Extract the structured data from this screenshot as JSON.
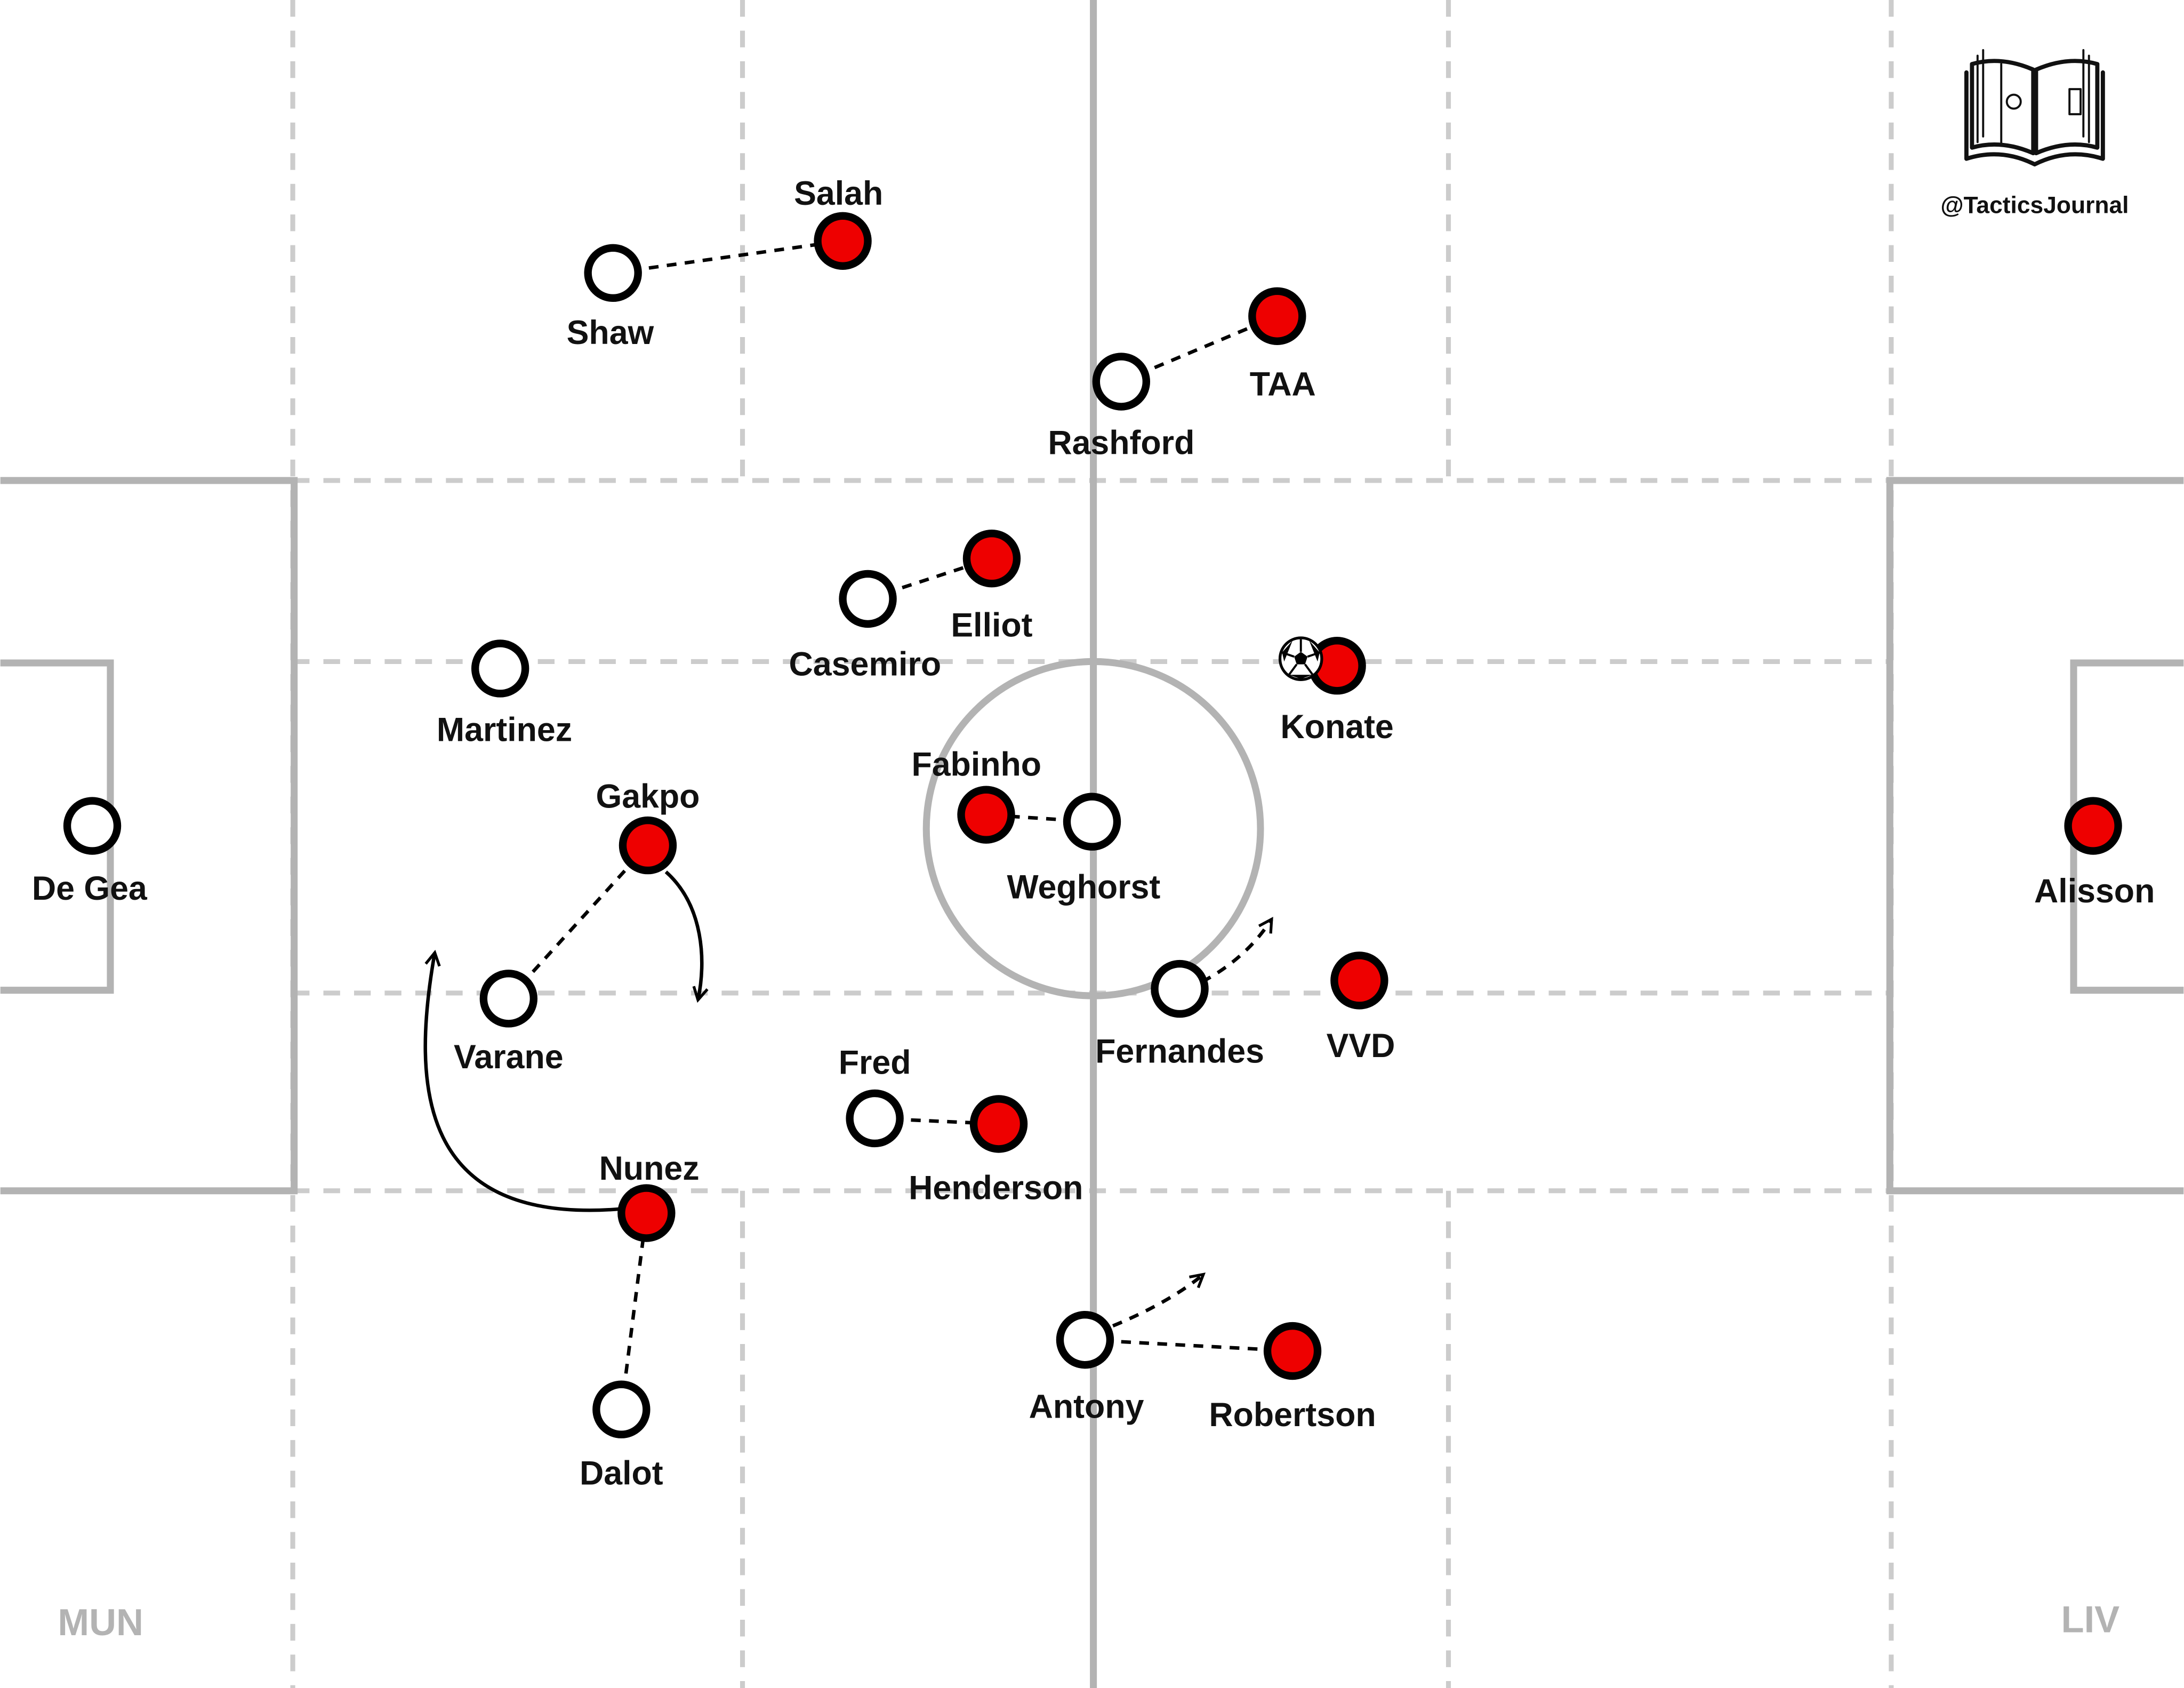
{
  "credit": {
    "handle": "@TacticsJournal",
    "logo_icon": "tactics-book-icon"
  },
  "teams": {
    "left": {
      "code": "MUN",
      "marker_fill": "#ffffff",
      "marker_stroke": "#000000"
    },
    "right": {
      "code": "LIV",
      "marker_fill": "#ee0000",
      "marker_stroke": "#000000"
    }
  },
  "colors": {
    "pitch_lines": "#b3b3b3",
    "grid_lines": "#cccccc",
    "team_code": "#b3b3b3",
    "label": "#111111"
  },
  "players": {
    "mun": [
      {
        "id": "de-gea",
        "name": "De Gea"
      },
      {
        "id": "shaw",
        "name": "Shaw"
      },
      {
        "id": "rashford",
        "name": "Rashford"
      },
      {
        "id": "casemiro",
        "name": "Casemiro"
      },
      {
        "id": "martinez",
        "name": "Martinez"
      },
      {
        "id": "weghorst",
        "name": "Weghorst"
      },
      {
        "id": "varane",
        "name": "Varane"
      },
      {
        "id": "fernandes",
        "name": "Fernandes"
      },
      {
        "id": "fred",
        "name": "Fred"
      },
      {
        "id": "antony",
        "name": "Antony"
      },
      {
        "id": "dalot",
        "name": "Dalot"
      }
    ],
    "liv": [
      {
        "id": "salah",
        "name": "Salah"
      },
      {
        "id": "taa",
        "name": "TAA"
      },
      {
        "id": "elliot",
        "name": "Elliot"
      },
      {
        "id": "konate",
        "name": "Konate",
        "has_ball": true
      },
      {
        "id": "fabinho",
        "name": "Fabinho"
      },
      {
        "id": "gakpo",
        "name": "Gakpo"
      },
      {
        "id": "alisson",
        "name": "Alisson"
      },
      {
        "id": "vvd",
        "name": "VVD"
      },
      {
        "id": "henderson",
        "name": "Henderson"
      },
      {
        "id": "nunez",
        "name": "Nunez"
      },
      {
        "id": "robertson",
        "name": "Robertson"
      }
    ]
  },
  "marking_links": [
    [
      "shaw",
      "salah"
    ],
    [
      "rashford",
      "taa"
    ],
    [
      "casemiro",
      "elliot"
    ],
    [
      "weghorst",
      "fabinho"
    ],
    [
      "varane",
      "gakpo"
    ],
    [
      "fred",
      "henderson"
    ],
    [
      "dalot",
      "nunez"
    ],
    [
      "antony",
      "robertson"
    ]
  ],
  "movements": [
    {
      "player": "nunez",
      "style": "solid-arrow"
    },
    {
      "player": "gakpo",
      "style": "solid-arrow"
    },
    {
      "player": "fernandes",
      "style": "dashed-arrow"
    },
    {
      "player": "antony",
      "style": "dashed-arrow"
    }
  ]
}
